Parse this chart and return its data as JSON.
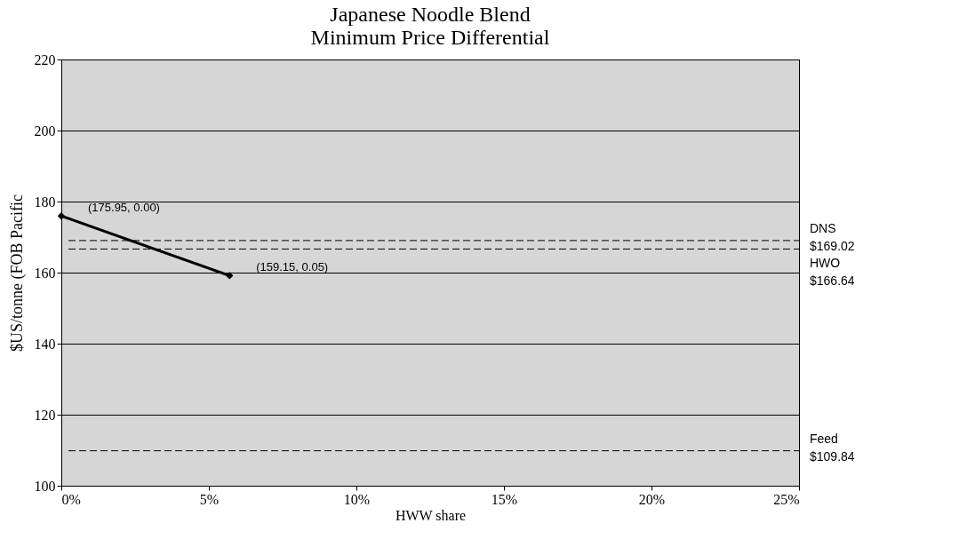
{
  "chart_data": {
    "type": "line",
    "title": [
      "Japanese Noodle Blend",
      "Minimum Price Differential"
    ],
    "xlabel": "HWW share",
    "ylabel": "$US/tonne (FOB Pacific",
    "x": [
      0,
      0.057
    ],
    "series": [
      {
        "color": "#000000",
        "values": [
          175.95,
          159.15
        ]
      }
    ],
    "marker": "diamond",
    "line_style": "solid",
    "xlim": [
      0,
      0.25
    ],
    "xticks": [
      {
        "value": 0,
        "label": "0%"
      },
      {
        "value": 0.05,
        "label": "5%"
      },
      {
        "value": 0.1,
        "label": "10%"
      },
      {
        "value": 0.15,
        "label": "15%"
      },
      {
        "value": 0.2,
        "label": "20%"
      },
      {
        "value": 0.25,
        "label": "25%"
      }
    ],
    "ylim": [
      100,
      220
    ],
    "yticks": [
      100,
      120,
      140,
      160,
      180,
      200,
      220
    ],
    "grid": "y",
    "ref_lines": [
      {
        "axis": "y",
        "value": 169.02,
        "label": "DNS\n$169.02",
        "color": "#000000",
        "line_style": "dashed"
      },
      {
        "axis": "y",
        "value": 166.64,
        "label": "HWO\n$166.64",
        "color": "#000000",
        "line_style": "dashed"
      },
      {
        "axis": "y",
        "value": 109.84,
        "label": "Feed\n$109.84",
        "color": "#000000",
        "line_style": "dashed"
      }
    ],
    "annotations": [
      {
        "text": "(175.95, 0.00)",
        "x": 0,
        "y": 175.95
      },
      {
        "text": "(159.15, 0.05)",
        "x": 0.057,
        "y": 159.15
      }
    ]
  }
}
